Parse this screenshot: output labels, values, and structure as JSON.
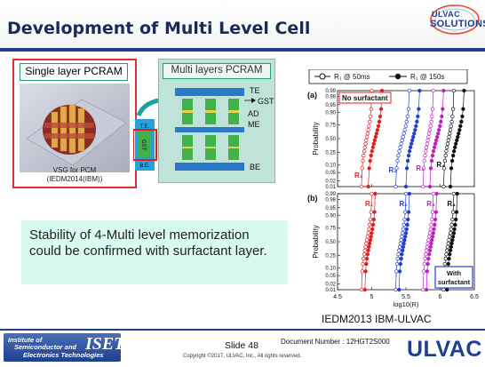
{
  "header": {
    "title": "Development of Multi Level Cell",
    "logo_line1": "ULVAC",
    "logo_line2": "SOLUTIONS"
  },
  "single_layer": {
    "label": "Single layer PCRAM",
    "caption_line1": "VSG for PCM",
    "caption_line2": "(IEDM2014(IBM))",
    "tag_te": "T.E.",
    "tag_be": "B.E.",
    "tag_gst": "GST"
  },
  "multi_layer": {
    "label": "Multi layers PCRAM",
    "te": "TE",
    "gst": "GST",
    "ad": "AD",
    "me": "ME",
    "be": "BE"
  },
  "body_text": "Stability of 4-Multi level memorization could be confirmed with surfactant layer.",
  "chart_data": {
    "type": "scatter",
    "xlabel": "log10(R)",
    "ylabel": "Probability",
    "xlim": [
      4.5,
      6.5
    ],
    "x_ticks": [
      "4.5",
      "5",
      "5.5",
      "6",
      "6.5"
    ],
    "y_ticks": [
      "0.01",
      "0.02",
      "0.05",
      "0.10",
      "0.25",
      "0.50",
      "0.75",
      "0.90",
      "0.95",
      "0.98",
      "0.99"
    ],
    "legend": [
      {
        "name": "R₁ @ 50ms",
        "marker": "open-circle"
      },
      {
        "name": "R₁ @ 150s",
        "marker": "filled-circle"
      }
    ],
    "panels": [
      {
        "id": "(a)",
        "annotation": "No surfactant",
        "levels": [
          {
            "label": "R₁",
            "color": "#e02020",
            "x_range_50ms": [
              4.85,
              5.0
            ],
            "x_range_150s": [
              4.95,
              5.15
            ]
          },
          {
            "label": "R₂",
            "color": "#1f3fd0",
            "x_range_50ms": [
              5.35,
              5.55
            ],
            "x_range_150s": [
              5.5,
              5.7
            ]
          },
          {
            "label": "R₃",
            "color": "#c020c0",
            "x_range_50ms": [
              5.75,
              5.9
            ],
            "x_range_150s": [
              5.85,
              6.05
            ]
          },
          {
            "label": "R₄",
            "color": "#111111",
            "x_range_50ms": [
              6.05,
              6.2
            ],
            "x_range_150s": [
              6.15,
              6.35
            ]
          }
        ]
      },
      {
        "id": "(b)",
        "annotation": "With surfactant",
        "levels": [
          {
            "label": "R₁",
            "color": "#e02020",
            "x_range_50ms": [
              4.85,
              5.0
            ],
            "x_range_150s": [
              4.9,
              5.05
            ]
          },
          {
            "label": "R₂",
            "color": "#1f3fd0",
            "x_range_50ms": [
              5.35,
              5.5
            ],
            "x_range_150s": [
              5.4,
              5.55
            ]
          },
          {
            "label": "R₃",
            "color": "#c020c0",
            "x_range_50ms": [
              5.75,
              5.9
            ],
            "x_range_150s": [
              5.8,
              5.95
            ]
          },
          {
            "label": "R₄",
            "color": "#111111",
            "x_range_50ms": [
              6.05,
              6.2
            ],
            "x_range_150s": [
              6.1,
              6.25
            ]
          }
        ]
      }
    ]
  },
  "chart_reference": "IEDM2013  IBM-ULVAC",
  "footer": {
    "iset_line1": "Institute of",
    "iset_line2": "Semiconductor and",
    "iset_line3": "Electronics Technologies",
    "iset_big": "ISET",
    "slide": "Slide 48",
    "doc_number": "Document Number : 12HGT2S000",
    "copyright": "Copyright ©2017, ULVAC, Inc., All rights reserved.",
    "ulvac": "ULVAC"
  }
}
